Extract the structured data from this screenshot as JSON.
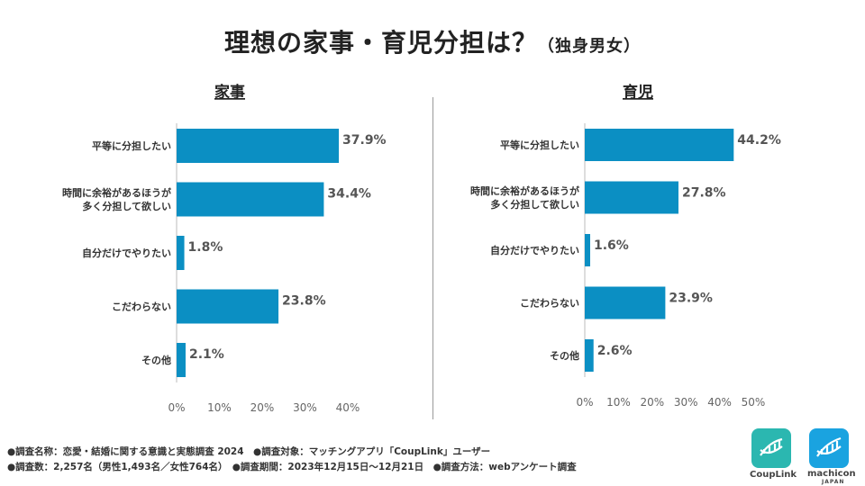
{
  "title": {
    "main": "理想の家事・育児分担は？",
    "sub": "（独身男女）"
  },
  "chart_data": [
    {
      "type": "bar",
      "orientation": "horizontal",
      "title": "家事",
      "categories": [
        "平等に分担したい",
        "時間に余裕があるほうが\n多く分担して欲しい",
        "自分だけでやりたい",
        "こだわらない",
        "その他"
      ],
      "values": [
        37.9,
        34.4,
        1.8,
        23.8,
        2.1
      ],
      "value_labels": [
        "37.9%",
        "34.4%",
        "1.8%",
        "23.8%",
        "2.1%"
      ],
      "xlim": [
        0,
        40
      ],
      "xticks": [
        "0%",
        "10%",
        "20%",
        "30%",
        "40%"
      ],
      "color": "#0b8fc3"
    },
    {
      "type": "bar",
      "orientation": "horizontal",
      "title": "育児",
      "categories": [
        "平等に分担したい",
        "時間に余裕があるほうが\n多く分担して欲しい",
        "自分だけでやりたい",
        "こだわらない",
        "その他"
      ],
      "values": [
        44.2,
        27.8,
        1.6,
        23.9,
        2.6
      ],
      "value_labels": [
        "44.2%",
        "27.8%",
        "1.6%",
        "23.9%",
        "2.6%"
      ],
      "xlim": [
        0,
        50
      ],
      "xticks": [
        "0%",
        "10%",
        "20%",
        "30%",
        "40%",
        "50%"
      ],
      "color": "#0b8fc3"
    }
  ],
  "footnotes": {
    "line1": "●調査名称：恋愛・結婚に関する意識と実態調査 2024　●調査対象：マッチングアプリ「CoupLink」ユーザー",
    "line2": "●調査数：2,257名（男性1,493名／女性764名）　●調査期間：2023年12月15日～12月21日　●調査方法：webアンケート調査"
  },
  "logos": {
    "couplink": {
      "name": "CoupLink",
      "color": "#2bb7b0"
    },
    "machicon": {
      "name": "machicon",
      "sub": "JAPAN",
      "color": "#1aa3e0"
    }
  }
}
